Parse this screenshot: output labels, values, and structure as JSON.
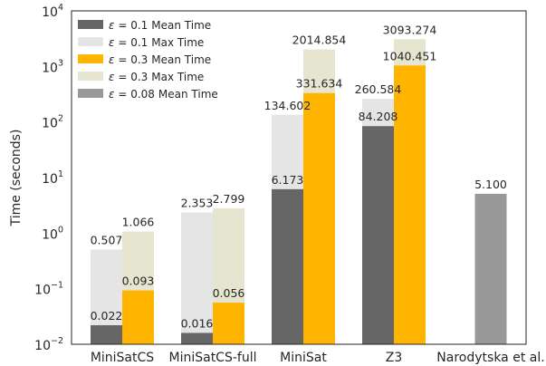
{
  "chart_data": {
    "type": "bar",
    "scale": "log",
    "ylim": [
      0.01,
      10000
    ],
    "ylabel": "Time (seconds)",
    "xlabel": "",
    "grid": false,
    "legend_position": "top-left",
    "yticks": [
      {
        "base": "10",
        "exp": "−2"
      },
      {
        "base": "10",
        "exp": "−1"
      },
      {
        "base": "10",
        "exp": "0"
      },
      {
        "base": "10",
        "exp": "1"
      },
      {
        "base": "10",
        "exp": "2"
      },
      {
        "base": "10",
        "exp": "3"
      },
      {
        "base": "10",
        "exp": "4"
      }
    ],
    "categories": [
      "MiniSatCS",
      "MiniSatCS-full",
      "MiniSat",
      "Z3",
      "Narodytska et al."
    ],
    "legend": [
      {
        "eps": "0.1",
        "label": "Mean Time",
        "color": "#666666"
      },
      {
        "eps": "0.1",
        "label": "Max Time",
        "color": "#e5e5e5"
      },
      {
        "eps": "0.3",
        "label": "Mean Time",
        "color": "#ffb400"
      },
      {
        "eps": "0.3",
        "label": "Max Time",
        "color": "#e5e5d0"
      },
      {
        "eps": "0.08",
        "label": "Mean Time",
        "color": "#999999"
      }
    ],
    "series": [
      {
        "name": "ε = 0.1 Mean Time",
        "color": "#666666",
        "values": [
          0.022,
          0.016,
          6.173,
          84.208,
          null
        ],
        "labels": [
          "0.022",
          "0.016",
          "6.173",
          "84.208",
          ""
        ]
      },
      {
        "name": "ε = 0.1 Max Time",
        "color": "#e5e5e5",
        "values": [
          0.507,
          2.353,
          134.602,
          260.584,
          null
        ],
        "labels": [
          "0.507",
          "2.353",
          "134.602",
          "260.584",
          ""
        ]
      },
      {
        "name": "ε = 0.3 Mean Time",
        "color": "#ffb400",
        "values": [
          0.093,
          0.056,
          331.634,
          1040.451,
          null
        ],
        "labels": [
          "0.093",
          "0.056",
          "331.634",
          "1040.451",
          ""
        ]
      },
      {
        "name": "ε = 0.3 Max Time",
        "color": "#e5e5d0",
        "values": [
          1.066,
          2.799,
          2014.854,
          3093.274,
          null
        ],
        "labels": [
          "1.066",
          "2.799",
          "2014.854",
          "3093.274",
          ""
        ]
      },
      {
        "name": "ε = 0.08 Mean Time",
        "color": "#999999",
        "values": [
          null,
          null,
          null,
          null,
          5.1
        ],
        "labels": [
          "",
          "",
          "",
          "",
          "5.100"
        ]
      }
    ]
  }
}
